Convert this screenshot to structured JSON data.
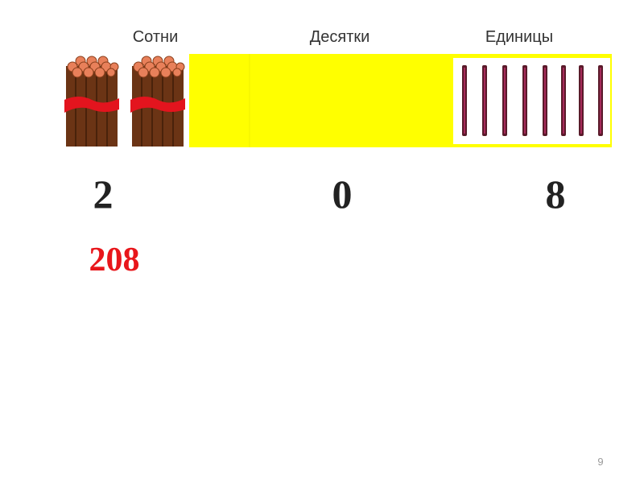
{
  "headers": [
    "Сотни",
    "Десятки",
    "Единицы"
  ],
  "digits": [
    "2",
    "0",
    "8"
  ],
  "number": "208",
  "page_number": "9"
}
